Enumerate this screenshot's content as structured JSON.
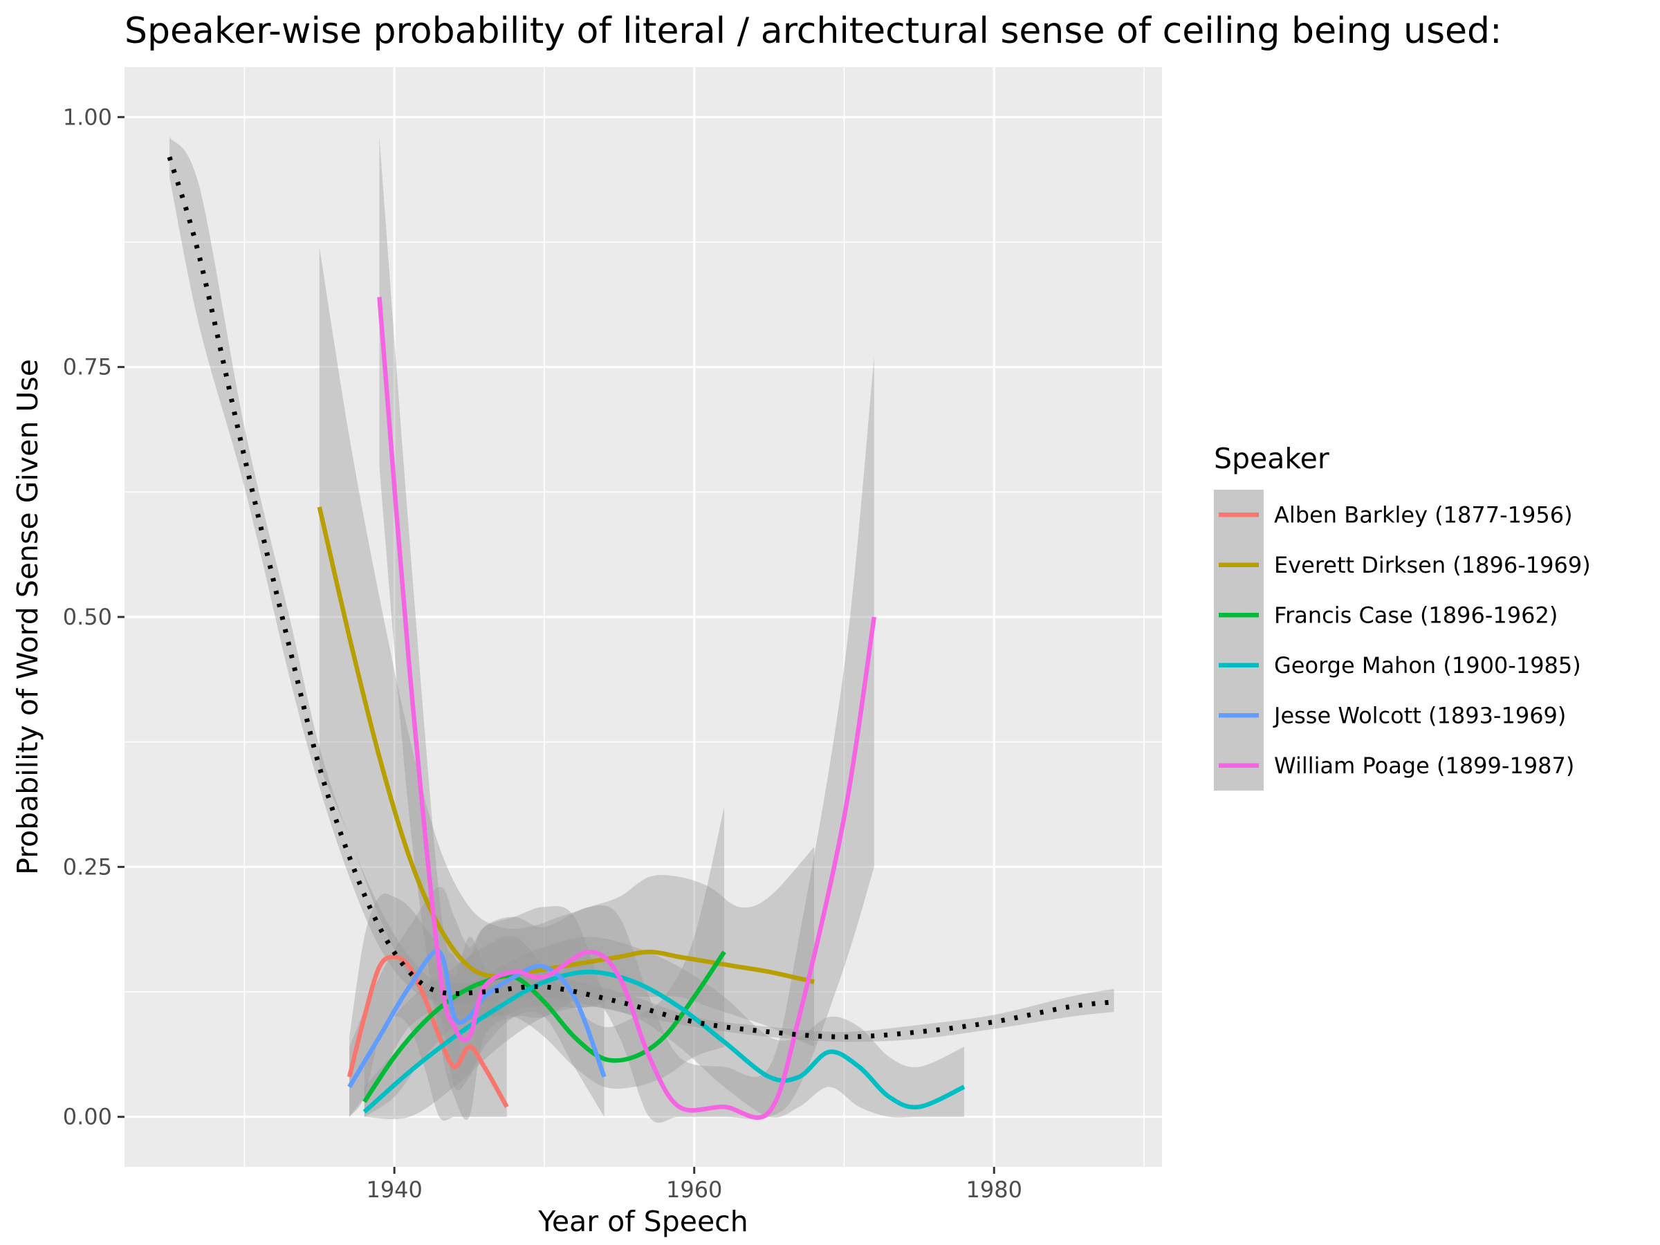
{
  "chart_data": {
    "type": "line",
    "title": "Speaker-wise probability of literal / architectural sense of ceiling being used:",
    "xlabel": "Year of Speech",
    "ylabel": "Probability of Word Sense Given Use",
    "xlim": [
      1922,
      1991.2
    ],
    "ylim": [
      -0.05,
      1.05
    ],
    "x_ticks": [
      1940,
      1960,
      1980
    ],
    "x_tick_labels": [
      "1940",
      "1960",
      "1980"
    ],
    "y_ticks": [
      0,
      0.25,
      0.5,
      0.75,
      1.0
    ],
    "y_tick_labels": [
      "0.00",
      "0.25",
      "0.50",
      "0.75",
      "1.00"
    ],
    "grid": true,
    "legend_title": "Speaker",
    "legend_position": "right",
    "series": [
      {
        "name": "Alben Barkley (1877-1956)",
        "color": "#F8766D",
        "x": [
          1937,
          1938,
          1939,
          1940,
          1941,
          1942,
          1943,
          1944,
          1945,
          1946,
          1947.5
        ],
        "y": [
          0.04,
          0.1,
          0.15,
          0.16,
          0.15,
          0.12,
          0.08,
          0.05,
          0.07,
          0.05,
          0.01
        ],
        "band_lower": [
          0.0,
          0.02,
          0.08,
          0.1,
          0.09,
          0.05,
          0.0,
          0.0,
          0.0,
          0.0,
          0.0
        ],
        "band_upper": [
          0.08,
          0.18,
          0.22,
          0.22,
          0.21,
          0.19,
          0.17,
          0.14,
          0.18,
          0.15,
          0.1
        ]
      },
      {
        "name": "Everett Dirksen (1896-1969)",
        "color": "#B79F00",
        "x": [
          1935,
          1937,
          1939,
          1941,
          1943,
          1945,
          1947,
          1949,
          1951,
          1953,
          1955,
          1957,
          1959,
          1961,
          1963,
          1965,
          1968
        ],
        "y": [
          0.61,
          0.48,
          0.36,
          0.26,
          0.19,
          0.15,
          0.14,
          0.145,
          0.15,
          0.155,
          0.16,
          0.165,
          0.16,
          0.155,
          0.15,
          0.145,
          0.135
        ],
        "band_lower": [
          0.35,
          0.28,
          0.2,
          0.14,
          0.11,
          0.1,
          0.1,
          0.11,
          0.11,
          0.11,
          0.12,
          0.12,
          0.12,
          0.11,
          0.1,
          0.09,
          0.07
        ],
        "band_upper": [
          0.87,
          0.68,
          0.52,
          0.38,
          0.27,
          0.21,
          0.19,
          0.19,
          0.2,
          0.21,
          0.22,
          0.24,
          0.24,
          0.23,
          0.21,
          0.22,
          0.27
        ]
      },
      {
        "name": "Francis Case (1896-1962)",
        "color": "#00BA38",
        "x": [
          1938,
          1940,
          1942,
          1944,
          1946,
          1948,
          1950,
          1952,
          1954,
          1956,
          1958,
          1960,
          1962
        ],
        "y": [
          0.015,
          0.06,
          0.095,
          0.12,
          0.135,
          0.14,
          0.115,
          0.08,
          0.058,
          0.06,
          0.08,
          0.12,
          0.165
        ],
        "band_lower": [
          0.0,
          0.02,
          0.06,
          0.09,
          0.1,
          0.1,
          0.08,
          0.05,
          0.03,
          0.03,
          0.04,
          0.06,
          0.07
        ],
        "band_upper": [
          0.05,
          0.1,
          0.13,
          0.15,
          0.17,
          0.18,
          0.15,
          0.11,
          0.09,
          0.1,
          0.12,
          0.18,
          0.31
        ]
      },
      {
        "name": "George Mahon (1900-1985)",
        "color": "#00BFC4",
        "x": [
          1938,
          1941,
          1944,
          1947,
          1950,
          1953,
          1956,
          1959,
          1962,
          1965,
          1967,
          1969,
          1971,
          1973,
          1975,
          1978
        ],
        "y": [
          0.005,
          0.045,
          0.08,
          0.11,
          0.135,
          0.145,
          0.135,
          0.11,
          0.075,
          0.04,
          0.04,
          0.065,
          0.05,
          0.02,
          0.01,
          0.03
        ],
        "band_lower": [
          0.0,
          0.0,
          0.03,
          0.07,
          0.1,
          0.11,
          0.1,
          0.07,
          0.03,
          0.0,
          0.01,
          0.03,
          0.01,
          0.0,
          0.0,
          0.0
        ],
        "band_upper": [
          0.03,
          0.08,
          0.12,
          0.15,
          0.17,
          0.18,
          0.17,
          0.15,
          0.12,
          0.08,
          0.08,
          0.1,
          0.09,
          0.06,
          0.05,
          0.07
        ]
      },
      {
        "name": "Jesse Wolcott (1893-1969)",
        "color": "#619CFF",
        "x": [
          1937,
          1939,
          1941,
          1943,
          1944,
          1945,
          1946,
          1948,
          1950,
          1952,
          1954
        ],
        "y": [
          0.03,
          0.08,
          0.13,
          0.165,
          0.1,
          0.1,
          0.12,
          0.14,
          0.15,
          0.12,
          0.04
        ],
        "band_lower": [
          0.0,
          0.04,
          0.09,
          0.1,
          0.03,
          0.04,
          0.07,
          0.1,
          0.1,
          0.05,
          0.0
        ],
        "band_upper": [
          0.07,
          0.14,
          0.19,
          0.23,
          0.2,
          0.17,
          0.19,
          0.2,
          0.21,
          0.2,
          0.12
        ]
      },
      {
        "name": "William Poage (1899-1987)",
        "color": "#F564E3",
        "x": [
          1939,
          1941,
          1943,
          1944,
          1945,
          1946,
          1948,
          1950,
          1953,
          1955,
          1957,
          1959,
          1962,
          1965,
          1967,
          1970,
          1972
        ],
        "y": [
          0.82,
          0.45,
          0.15,
          0.09,
          0.08,
          0.13,
          0.145,
          0.14,
          0.165,
          0.14,
          0.06,
          0.01,
          0.01,
          0.005,
          0.1,
          0.3,
          0.5
        ],
        "band_lower": [
          0.65,
          0.3,
          0.08,
          0.02,
          0.0,
          0.08,
          0.1,
          0.1,
          0.12,
          0.08,
          0.0,
          0.0,
          0.0,
          0.0,
          0.03,
          0.15,
          0.25
        ],
        "band_upper": [
          0.98,
          0.58,
          0.22,
          0.16,
          0.16,
          0.19,
          0.2,
          0.19,
          0.21,
          0.2,
          0.12,
          0.06,
          0.05,
          0.05,
          0.18,
          0.45,
          0.76
        ]
      },
      {
        "color": "#000000",
        "style": "dotted",
        "x": [
          1925,
          1927,
          1930,
          1933,
          1935,
          1937,
          1939,
          1941,
          1943,
          1946,
          1950,
          1955,
          1960,
          1965,
          1970,
          1975,
          1980,
          1985,
          1988
        ],
        "y": [
          0.96,
          0.86,
          0.66,
          0.47,
          0.35,
          0.26,
          0.19,
          0.145,
          0.125,
          0.125,
          0.13,
          0.115,
          0.095,
          0.085,
          0.08,
          0.085,
          0.095,
          0.11,
          0.115
        ],
        "band_lower": [
          0.94,
          0.79,
          0.63,
          0.44,
          0.33,
          0.24,
          0.17,
          0.13,
          0.115,
          0.115,
          0.12,
          0.105,
          0.09,
          0.08,
          0.075,
          0.078,
          0.088,
          0.1,
          0.105
        ],
        "band_upper": [
          0.98,
          0.93,
          0.69,
          0.5,
          0.37,
          0.28,
          0.21,
          0.16,
          0.135,
          0.135,
          0.14,
          0.125,
          0.1,
          0.09,
          0.085,
          0.092,
          0.102,
          0.12,
          0.128
        ]
      }
    ]
  }
}
